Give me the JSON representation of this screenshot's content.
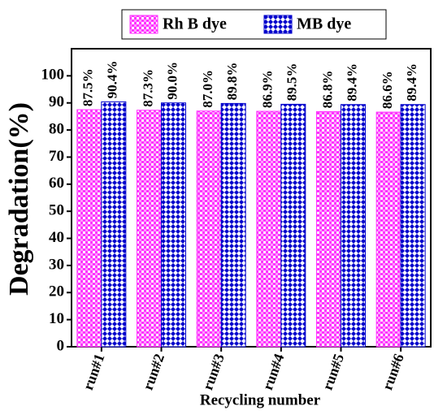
{
  "chart_data": {
    "type": "bar",
    "x_label": "Recycling number",
    "y_label": "Degradation(%)",
    "categories": [
      "run#1",
      "run#2",
      "run#3",
      "run#4",
      "run#5",
      "run#6"
    ],
    "series": [
      {
        "name": "Rh B dye",
        "color": "#ff33ff",
        "values": [
          87.5,
          87.3,
          87.0,
          86.9,
          86.8,
          86.6
        ],
        "value_labels": [
          "87.5%",
          "87.3%",
          "87.0%",
          "86.9%",
          "86.8%",
          "86.6%"
        ]
      },
      {
        "name": "MB dye",
        "color": "#0000cc",
        "values": [
          90.4,
          90.0,
          89.8,
          89.5,
          89.4,
          89.4
        ],
        "value_labels": [
          "90.4%",
          "90.0%",
          "89.8%",
          "89.5%",
          "89.4%",
          "89.4%"
        ]
      }
    ],
    "ylim": [
      0,
      110
    ],
    "yticks": [
      0,
      10,
      20,
      30,
      40,
      50,
      60,
      70,
      80,
      90,
      100
    ]
  }
}
